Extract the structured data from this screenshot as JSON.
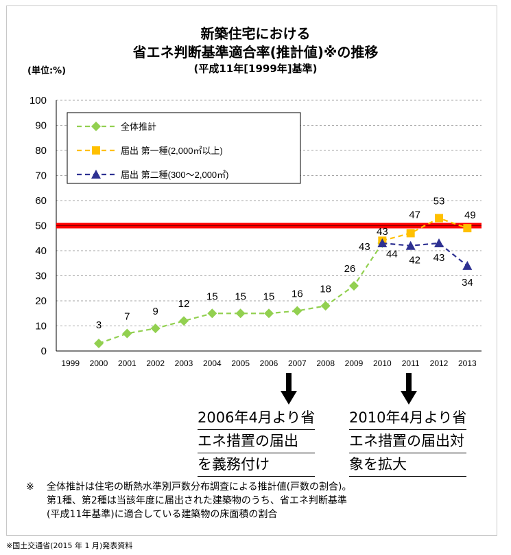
{
  "header": {
    "title_line1": "新築住宅における",
    "title_line2": "省エネ判断基準適合率(推計値)※の推移",
    "title_line3": "(平成11年[1999年]基準)",
    "unit_label": "(単位:%)"
  },
  "chart_data": {
    "type": "line",
    "categories": [
      "1999",
      "2000",
      "2001",
      "2002",
      "2003",
      "2004",
      "2005",
      "2006",
      "2007",
      "2008",
      "2009",
      "2010",
      "2011",
      "2012",
      "2013"
    ],
    "ylim": [
      0,
      100
    ],
    "yticks": [
      0,
      10,
      20,
      30,
      40,
      50,
      60,
      70,
      80,
      90,
      100
    ],
    "grid": true,
    "legend_position": "top-left",
    "reference_line": {
      "value": 50,
      "color": "#ff0000"
    },
    "series": [
      {
        "name": "全体推計",
        "marker": "diamond",
        "color": "#92d050",
        "values": [
          null,
          3,
          7,
          9,
          12,
          15,
          15,
          15,
          16,
          18,
          26,
          43,
          null,
          null,
          null
        ]
      },
      {
        "name": "届出 第一種(2,000㎡以上)",
        "marker": "square",
        "color": "#ffc000",
        "values": [
          null,
          null,
          null,
          null,
          null,
          null,
          null,
          null,
          null,
          null,
          null,
          44,
          47,
          53,
          49
        ]
      },
      {
        "name": "届出 第二種(300〜2,000㎡)",
        "marker": "triangle",
        "color": "#2e3192",
        "values": [
          null,
          null,
          null,
          null,
          null,
          null,
          null,
          null,
          null,
          null,
          null,
          43,
          42,
          43,
          34
        ]
      }
    ],
    "data_labels": [
      {
        "text": "3",
        "x": "2000",
        "y": 3
      },
      {
        "text": "7",
        "x": "2001",
        "y": 7
      },
      {
        "text": "9",
        "x": "2002",
        "y": 9
      },
      {
        "text": "12",
        "x": "2003",
        "y": 12
      },
      {
        "text": "15",
        "x": "2004",
        "y": 15
      },
      {
        "text": "15",
        "x": "2005",
        "y": 15
      },
      {
        "text": "15",
        "x": "2006",
        "y": 15
      },
      {
        "text": "16",
        "x": "2007",
        "y": 16
      },
      {
        "text": "18",
        "x": "2008",
        "y": 18
      },
      {
        "text": "26",
        "x": "2009",
        "y": 26
      },
      {
        "text": "43",
        "x": "2010",
        "y": 43
      },
      {
        "text": "43",
        "x": "2010",
        "y": 43
      },
      {
        "text": "44",
        "x": "2010",
        "y": 44
      },
      {
        "text": "47",
        "x": "2011",
        "y": 47
      },
      {
        "text": "42",
        "x": "2011",
        "y": 42
      },
      {
        "text": "53",
        "x": "2012",
        "y": 53
      },
      {
        "text": "43",
        "x": "2012",
        "y": 43
      },
      {
        "text": "49",
        "x": "2013",
        "y": 49
      },
      {
        "text": "34",
        "x": "2013",
        "y": 34
      }
    ]
  },
  "annotations": [
    {
      "lines": [
        "2006年4月より省",
        "エネ措置の届出",
        "を義務付け"
      ],
      "year": "2007"
    },
    {
      "lines": [
        "2010年4月より省",
        "エネ措置の届出対",
        "象を拡大"
      ],
      "year": "2011"
    }
  ],
  "notes": {
    "mark": "※",
    "line1": "全体推計は住宅の断熱水準別戸数分布調査による推計値(戸数の割合)。",
    "line2": "第1種、第2種は当該年度に届出された建築物のうち、省エネ判断基準",
    "line3": "(平成11年基準)に適合している建築物の床面積の割合"
  },
  "source": "※国土交通省(2015 年 1 月)発表資料"
}
